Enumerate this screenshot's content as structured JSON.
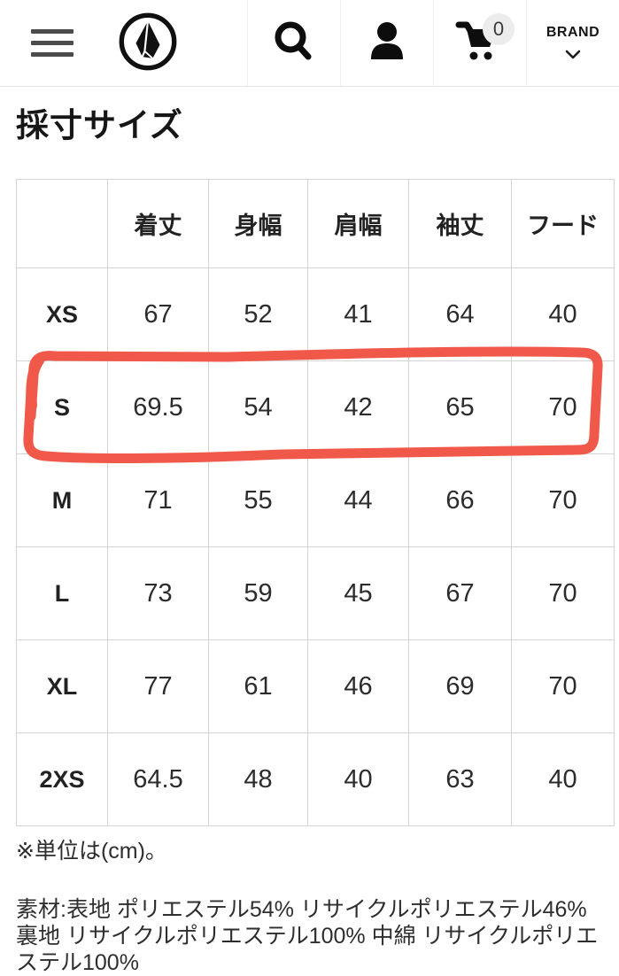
{
  "header": {
    "brand_label": "BRAND",
    "cart_count": "0",
    "icons": {
      "menu": "hamburger",
      "logo": "volcom-stone-logo",
      "search": "magnifier",
      "account": "person",
      "cart": "shopping-cart",
      "brand_chevron": "chevron-down"
    }
  },
  "page": {
    "title": "採寸サイズ"
  },
  "size_table": {
    "columns": [
      "",
      "着丈",
      "身幅",
      "肩幅",
      "袖丈",
      "フード"
    ],
    "rows": [
      {
        "size": "XS",
        "values": [
          "67",
          "52",
          "41",
          "64",
          "40"
        ],
        "highlighted": false
      },
      {
        "size": "S",
        "values": [
          "69.5",
          "54",
          "42",
          "65",
          "70"
        ],
        "highlighted": true
      },
      {
        "size": "M",
        "values": [
          "71",
          "55",
          "44",
          "66",
          "70"
        ],
        "highlighted": false
      },
      {
        "size": "L",
        "values": [
          "73",
          "59",
          "45",
          "67",
          "70"
        ],
        "highlighted": false
      },
      {
        "size": "XL",
        "values": [
          "77",
          "61",
          "46",
          "69",
          "70"
        ],
        "highlighted": false
      },
      {
        "size": "2XS",
        "values": [
          "64.5",
          "48",
          "40",
          "63",
          "40"
        ],
        "highlighted": false
      }
    ],
    "unit_note": "※単位は(cm)。"
  },
  "materials_note": "素材:表地 ポリエステル54% リサイクルポリエステル46% 裏地 リサイクルポリエステル100% 中綿 リサイクルポリエステル100%",
  "annotation": {
    "type": "hand-drawn-rectangle",
    "highlights_row": "S",
    "color": "#f0594a",
    "stroke_width": "11"
  }
}
